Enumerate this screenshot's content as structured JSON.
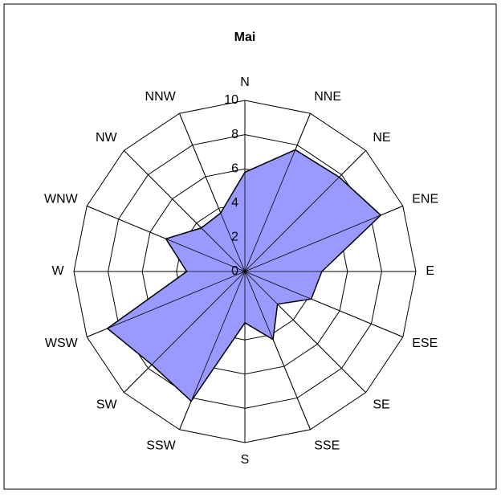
{
  "chart_data": {
    "type": "radar",
    "title": "Mai",
    "categories": [
      "N",
      "NNE",
      "NE",
      "ENE",
      "E",
      "ESE",
      "SE",
      "SSE",
      "S",
      "SSW",
      "SW",
      "WSW",
      "W",
      "WNW",
      "NW",
      "NNW"
    ],
    "values": [
      5.8,
      7.7,
      7.8,
      8.6,
      4.5,
      4.2,
      2.7,
      4.3,
      3.0,
      8.2,
      7.7,
      8.7,
      3.4,
      5.0,
      3.6,
      3.7
    ],
    "color": "#9999ff",
    "ylim": [
      0,
      10
    ],
    "yticks": [
      0,
      2,
      4,
      6,
      8,
      10
    ]
  }
}
